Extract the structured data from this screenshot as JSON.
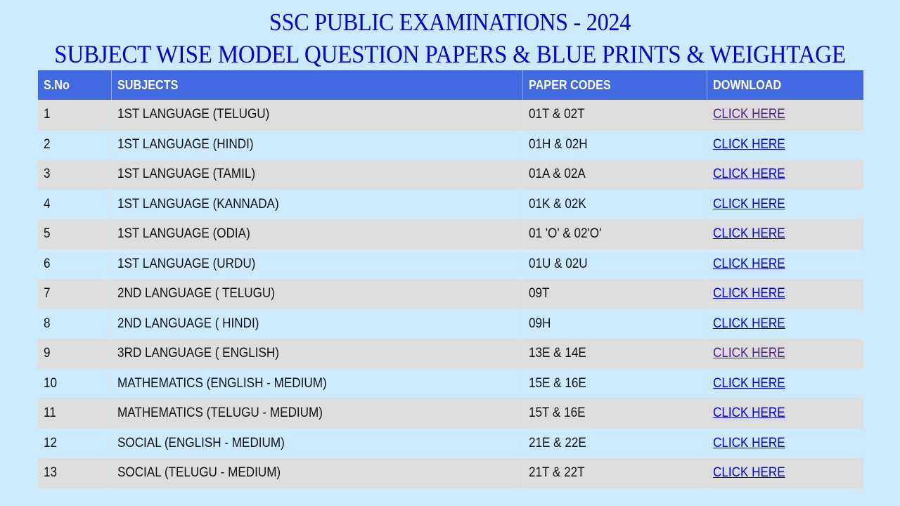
{
  "header": {
    "title_line1": "SSC PUBLIC EXAMINATIONS - 2024",
    "title_line2": "SUBJECT WISE MODEL QUESTION PAPERS & BLUE PRINTS & WEIGHTAGE"
  },
  "colors": {
    "page_background": "#cdeafd",
    "title_text": "#0000d8",
    "header_background": "#4169e1",
    "row_odd": "#dddddd",
    "row_even": "#cdeafd",
    "link": "#0000ee",
    "link_visited": "#551a8b"
  },
  "table": {
    "columns": [
      "S.No",
      "SUBJECTS",
      "PAPER CODES",
      "DOWNLOAD"
    ],
    "rows": [
      {
        "sno": "1",
        "subject": "1ST LANGUAGE (TELUGU)",
        "codes": "01T & 02T",
        "link": "CLICK HERE",
        "visited": true
      },
      {
        "sno": "2",
        "subject": "1ST LANGUAGE (HINDI)",
        "codes": "01H & 02H",
        "link": "CLICK HERE",
        "visited": false
      },
      {
        "sno": "3",
        "subject": "1ST LANGUAGE (TAMIL)",
        "codes": "01A & 02A",
        "link": "CLICK HERE",
        "visited": false
      },
      {
        "sno": "4",
        "subject": "1ST LANGUAGE (KANNADA)",
        "codes": "01K & 02K",
        "link": "CLICK HERE",
        "visited": false
      },
      {
        "sno": "5",
        "subject": "1ST LANGUAGE (ODIA)",
        "codes": "01 'O' & 02'O'",
        "link": "CLICK HERE",
        "visited": false
      },
      {
        "sno": "6",
        "subject": "1ST LANGUAGE (URDU)",
        "codes": "01U & 02U",
        "link": "CLICK HERE",
        "visited": false
      },
      {
        "sno": "7",
        "subject": "2ND LANGUAGE ( TELUGU)",
        "codes": "09T",
        "link": "CLICK HERE",
        "visited": false
      },
      {
        "sno": "8",
        "subject": "2ND LANGUAGE ( HINDI)",
        "codes": "09H",
        "link": "CLICK HERE",
        "visited": false
      },
      {
        "sno": "9",
        "subject": "3RD LANGUAGE ( ENGLISH)",
        "codes": "13E & 14E",
        "link": "CLICK HERE",
        "visited": true
      },
      {
        "sno": "10",
        "subject": "MATHEMATICS (ENGLISH - MEDIUM)",
        "codes": "15E & 16E",
        "link": "CLICK HERE",
        "visited": false
      },
      {
        "sno": "11",
        "subject": "MATHEMATICS (TELUGU - MEDIUM)",
        "codes": "15T & 16E",
        "link": "CLICK HERE",
        "visited": false
      },
      {
        "sno": "12",
        "subject": "SOCIAL (ENGLISH - MEDIUM)",
        "codes": "21E & 22E",
        "link": "CLICK HERE",
        "visited": false
      },
      {
        "sno": "13",
        "subject": "SOCIAL (TELUGU - MEDIUM)",
        "codes": "21T & 22T",
        "link": "CLICK HERE",
        "visited": false
      }
    ]
  }
}
